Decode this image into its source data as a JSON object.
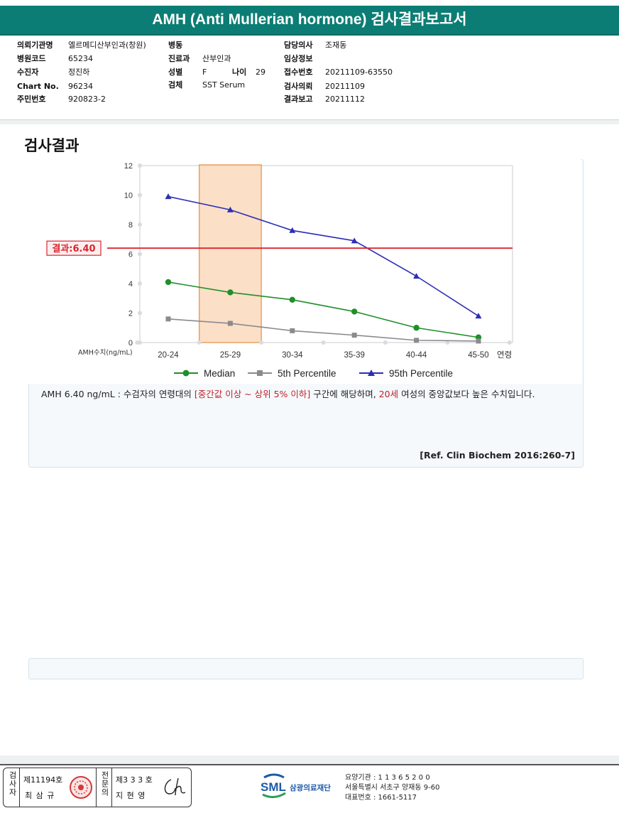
{
  "title": "AMH (Anti Mullerian hormone) 검사결과보고서",
  "info": {
    "col1": [
      {
        "label": "의뢰기관명",
        "value": "엘르메디산부인과(창원)"
      },
      {
        "label": "병원코드",
        "value": "65234"
      },
      {
        "label": "수진자",
        "value": "정진하"
      },
      {
        "label": "Chart No.",
        "value": "96234"
      },
      {
        "label": "주민번호",
        "value": "920823-2"
      }
    ],
    "col2": [
      {
        "label": "병동",
        "value": ""
      },
      {
        "label": "진료과",
        "value": "산부인과"
      },
      {
        "label": "성별",
        "value": "F"
      },
      {
        "label": "검체",
        "value": "SST Serum"
      }
    ],
    "age_label": "나이",
    "age_value": "29",
    "col3": [
      {
        "label": "담당의사",
        "value": "조재동"
      },
      {
        "label": "임상정보",
        "value": ""
      },
      {
        "label": "접수번호",
        "value": "20211109-63550"
      },
      {
        "label": "검사의뢰",
        "value": "20211109"
      },
      {
        "label": "결과보고",
        "value": "20211112"
      }
    ]
  },
  "section_title": "검사결과",
  "chart_data": {
    "type": "line",
    "categories": [
      "20-24",
      "25-29",
      "30-34",
      "35-39",
      "40-44",
      "45-50"
    ],
    "xlabel": "연령",
    "ylabel": "AMH수치(ng/mL)",
    "ylim": [
      0,
      12
    ],
    "yticks": [
      "0",
      "2",
      "4",
      "6",
      "8",
      "10",
      "12"
    ],
    "grid": false,
    "legend_position": "bottom",
    "highlight_category": "25-29",
    "result_line": {
      "value": 6.4,
      "label": "결과:6.40",
      "color": "#d9262e"
    },
    "series": [
      {
        "name": "Median",
        "color": "#1f8f2a",
        "marker": "circle",
        "values": [
          4.1,
          3.4,
          2.9,
          2.1,
          1.0,
          0.35
        ]
      },
      {
        "name": "5th Percentile",
        "color": "#8a8a8f",
        "marker": "square",
        "values": [
          1.6,
          1.3,
          0.8,
          0.5,
          0.15,
          0.1
        ]
      },
      {
        "name": "95th Percentile",
        "color": "#2c2fb5",
        "marker": "triangle",
        "values": [
          9.9,
          9.0,
          7.6,
          6.9,
          4.5,
          1.8
        ]
      }
    ]
  },
  "description": {
    "part1": "AMH  6.40 ng/mL : 수검자의 연령대의 ",
    "red1": "[중간값 이상 ~ 상위 5% 이하]",
    "part2": "  구간에 해당하며, ",
    "red2": "20세",
    "part3": " 여성의 중앙값보다 높은 수치입니다."
  },
  "reference": "[Ref. Clin Biochem 2016:260-7]",
  "footer": {
    "inspector_label": "검사자",
    "inspector_no": "제11194호",
    "inspector_name": "최 삼 규",
    "doctor_label": "전문의",
    "doctor_no": "제3 3 3 호",
    "doctor_name": "지 현 영",
    "logo_text": "SML",
    "org_name": "삼광의료재단",
    "org_code": "요양기관 : 1 1 3 6 5 2 0 0",
    "org_address": "서울특별시 서초구 양재동 9-60",
    "org_phone": "대표번호 : 1661-5117"
  }
}
